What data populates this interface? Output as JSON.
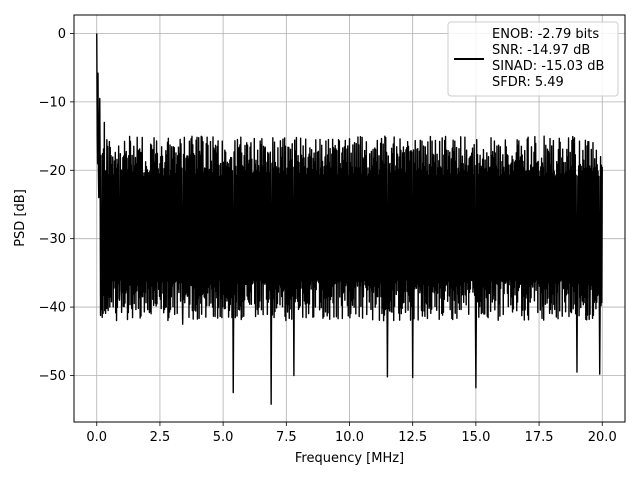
{
  "chart_data": {
    "type": "line",
    "xlabel": "Frequency [MHz]",
    "ylabel": "PSD [dB]",
    "xlim": [
      -0.9,
      20.9
    ],
    "ylim": [
      -56.8,
      2.7
    ],
    "xticks": [
      0.0,
      2.5,
      5.0,
      7.5,
      10.0,
      12.5,
      15.0,
      17.5,
      20.0
    ],
    "xtick_labels": [
      "0.0",
      "2.5",
      "5.0",
      "7.5",
      "10.0",
      "12.5",
      "15.0",
      "17.5",
      "20.0"
    ],
    "yticks": [
      0,
      -10,
      -20,
      -30,
      -40,
      -50
    ],
    "ytick_labels": [
      "0",
      "−10",
      "−20",
      "−30",
      "−40",
      "−50"
    ],
    "grid": true,
    "legend_position": "top-right",
    "legend_lines": [
      "ENOB: -2.79 bits",
      "SNR: -14.97 dB",
      "SINAD: -15.03 dB",
      "SFDR: 5.49"
    ],
    "series": [
      {
        "color": "#000000",
        "description_points": [
          {
            "x": 0.0,
            "y": 0.0
          },
          {
            "x": 0.02,
            "y": -15.0
          },
          {
            "x": 0.05,
            "y": -5.8
          },
          {
            "x": 0.08,
            "y": -24.0
          },
          {
            "x": 0.12,
            "y": -9.5
          },
          {
            "x": 0.2,
            "y": -31.0
          },
          {
            "x": 0.3,
            "y": -13.0
          },
          {
            "x": 0.45,
            "y": -40.5
          },
          {
            "x": 0.9,
            "y": -39.0
          },
          {
            "x": 3.4,
            "y": -42.5
          },
          {
            "x": 5.4,
            "y": -52.5
          },
          {
            "x": 6.9,
            "y": -54.2
          },
          {
            "x": 7.8,
            "y": -50.0
          },
          {
            "x": 11.5,
            "y": -50.2
          },
          {
            "x": 12.5,
            "y": -50.3
          },
          {
            "x": 15.0,
            "y": -51.8
          },
          {
            "x": 19.0,
            "y": -49.5
          },
          {
            "x": 19.9,
            "y": -49.8
          },
          {
            "x": 20.0,
            "y": -19.5
          }
        ]
      }
    ]
  }
}
